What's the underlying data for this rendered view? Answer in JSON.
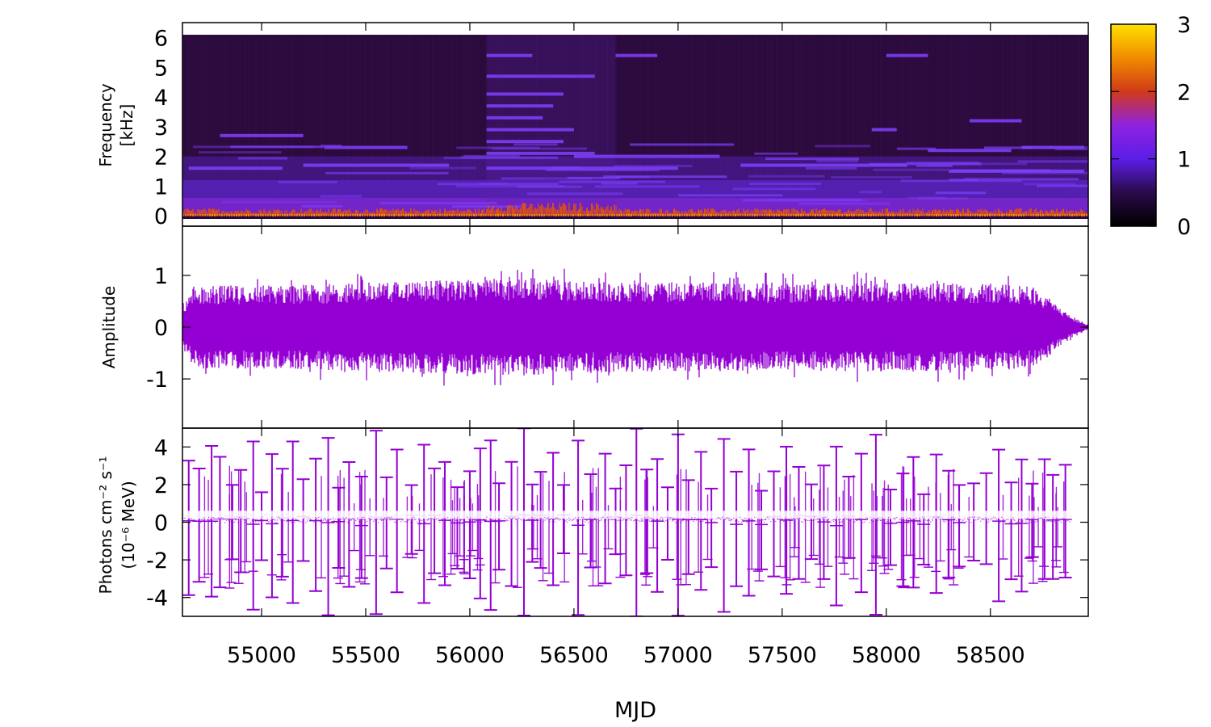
{
  "chart_data": [
    {
      "type": "heatmap",
      "panel": "spectrogram",
      "ylabel_lines": [
        "Frequency",
        "[kHz]"
      ],
      "ylim": [
        0,
        6.1
      ],
      "yticks": [
        0,
        1,
        2,
        3,
        4,
        5,
        6
      ],
      "xlim": [
        54620,
        58970
      ],
      "colorbar": {
        "range": [
          0,
          3
        ],
        "ticks": [
          0,
          1,
          2,
          3
        ],
        "colors": [
          "#000000",
          "#2a0a4a",
          "#5b1ee8",
          "#8f22e0",
          "#d03a18",
          "#f08c00",
          "#ffe000"
        ]
      },
      "background_color": "#2a0a3a",
      "low_band_color": "#6a2cf0",
      "hot_band_color": "#e2520a",
      "bright_segment_color": "#8040ff",
      "active_interval_mjd": [
        56080,
        56700
      ],
      "harmonic_segments_khz": [
        {
          "x": [
            56080,
            56300
          ],
          "y": 5.4
        },
        {
          "x": [
            56700,
            56900
          ],
          "y": 5.4
        },
        {
          "x": [
            58000,
            58200
          ],
          "y": 5.4
        },
        {
          "x": [
            56080,
            56600
          ],
          "y": 4.7
        },
        {
          "x": [
            56080,
            56450
          ],
          "y": 4.1
        },
        {
          "x": [
            56080,
            56400
          ],
          "y": 3.7
        },
        {
          "x": [
            56080,
            56350
          ],
          "y": 3.3
        },
        {
          "x": [
            58400,
            58650
          ],
          "y": 3.2
        },
        {
          "x": [
            57930,
            58050
          ],
          "y": 2.9
        },
        {
          "x": [
            54800,
            55200
          ],
          "y": 2.7
        },
        {
          "x": [
            56080,
            56500
          ],
          "y": 2.9
        },
        {
          "x": [
            56080,
            56450
          ],
          "y": 2.5
        },
        {
          "x": [
            55300,
            55700
          ],
          "y": 2.3
        },
        {
          "x": [
            56080,
            56600
          ],
          "y": 2.1
        },
        {
          "x": [
            56500,
            57200
          ],
          "y": 2.0
        },
        {
          "x": [
            58200,
            58600
          ],
          "y": 2.2
        },
        {
          "x": [
            58650,
            58950
          ],
          "y": 2.3
        },
        {
          "x": [
            54650,
            55100
          ],
          "y": 1.6
        },
        {
          "x": [
            55200,
            55900
          ],
          "y": 1.7
        },
        {
          "x": [
            56080,
            57000
          ],
          "y": 1.6
        },
        {
          "x": [
            57300,
            58100
          ],
          "y": 1.7
        },
        {
          "x": [
            58300,
            58950
          ],
          "y": 1.5
        }
      ]
    },
    {
      "type": "line",
      "panel": "waveform",
      "ylabel": "Amplitude",
      "ylim": [
        -1.95,
        1.95
      ],
      "yticks": [
        -1,
        0,
        1
      ],
      "xlim": [
        54620,
        58970
      ],
      "color": "#9400d3",
      "series": [
        {
          "values_desc": "dense noise-like signal",
          "envelope_x": [
            54620,
            54700,
            55200,
            55800,
            56100,
            56300,
            56600,
            57000,
            57500,
            58000,
            58500,
            58700,
            58800,
            58900,
            58970
          ],
          "envelope_amp": [
            0.45,
            0.8,
            0.82,
            0.9,
            0.92,
            0.95,
            0.88,
            0.87,
            0.84,
            0.86,
            0.84,
            0.8,
            0.5,
            0.2,
            0.04
          ]
        }
      ]
    },
    {
      "type": "scatter",
      "panel": "flux",
      "ylabel_lines": [
        "Photons cm⁻² s⁻¹",
        "(10⁻⁶ MeV)"
      ],
      "ylim": [
        -5,
        5
      ],
      "yticks": [
        -4,
        -2,
        0,
        2,
        4
      ],
      "xlim": [
        54620,
        58970
      ],
      "xticks": [
        55000,
        55500,
        56000,
        56500,
        57000,
        57500,
        58000,
        58500
      ],
      "xlabel": "MJD",
      "color": "#9400d3",
      "errorbar_points": [
        [
          54650,
          3.2
        ],
        [
          54700,
          2.8
        ],
        [
          54760,
          4.0
        ],
        [
          54800,
          3.3
        ],
        [
          54860,
          1.8
        ],
        [
          54900,
          2.5
        ],
        [
          54960,
          4.4
        ],
        [
          55000,
          1.5
        ],
        [
          55050,
          3.7
        ],
        [
          55100,
          2.6
        ],
        [
          55150,
          4.2
        ],
        [
          55200,
          2.0
        ],
        [
          55260,
          3.3
        ],
        [
          55320,
          4.5
        ],
        [
          55370,
          1.8
        ],
        [
          55420,
          3.0
        ],
        [
          55480,
          2.6
        ],
        [
          55550,
          4.6
        ],
        [
          55600,
          2.2
        ],
        [
          55650,
          3.7
        ],
        [
          55720,
          1.6
        ],
        [
          55780,
          4.2
        ],
        [
          55830,
          2.5
        ],
        [
          55880,
          3.1
        ],
        [
          55940,
          1.9
        ],
        [
          56000,
          2.7
        ],
        [
          56050,
          3.8
        ],
        [
          56100,
          4.3
        ],
        [
          56140,
          2.0
        ],
        [
          56200,
          2.9
        ],
        [
          56260,
          4.6
        ],
        [
          56300,
          1.9
        ],
        [
          56340,
          2.3
        ],
        [
          56400,
          3.5
        ],
        [
          56450,
          1.6
        ],
        [
          56520,
          4.5
        ],
        [
          56580,
          2.4
        ],
        [
          56650,
          3.4
        ],
        [
          56700,
          1.5
        ],
        [
          56750,
          2.8
        ],
        [
          56800,
          4.6
        ],
        [
          56850,
          2.6
        ],
        [
          56900,
          3.3
        ],
        [
          56950,
          1.6
        ],
        [
          57000,
          4.5
        ],
        [
          57050,
          2.1
        ],
        [
          57110,
          3.6
        ],
        [
          57160,
          1.8
        ],
        [
          57220,
          4.2
        ],
        [
          57280,
          2.8
        ],
        [
          57340,
          3.8
        ],
        [
          57400,
          1.8
        ],
        [
          57460,
          2.4
        ],
        [
          57520,
          3.9
        ],
        [
          57580,
          2.6
        ],
        [
          57640,
          1.7
        ],
        [
          57700,
          3.0
        ],
        [
          57760,
          4.2
        ],
        [
          57820,
          2.1
        ],
        [
          57880,
          3.5
        ],
        [
          57950,
          4.4
        ],
        [
          58020,
          1.8
        ],
        [
          58080,
          2.6
        ],
        [
          58130,
          3.4
        ],
        [
          58180,
          1.6
        ],
        [
          58240,
          3.3
        ],
        [
          58300,
          2.6
        ],
        [
          58350,
          2.0
        ],
        [
          58420,
          1.8
        ],
        [
          58480,
          2.4
        ],
        [
          58540,
          3.8
        ],
        [
          58600,
          2.2
        ],
        [
          58650,
          3.4
        ],
        [
          58700,
          1.9
        ],
        [
          58760,
          3.1
        ],
        [
          58800,
          2.4
        ],
        [
          58860,
          2.9
        ]
      ]
    }
  ]
}
